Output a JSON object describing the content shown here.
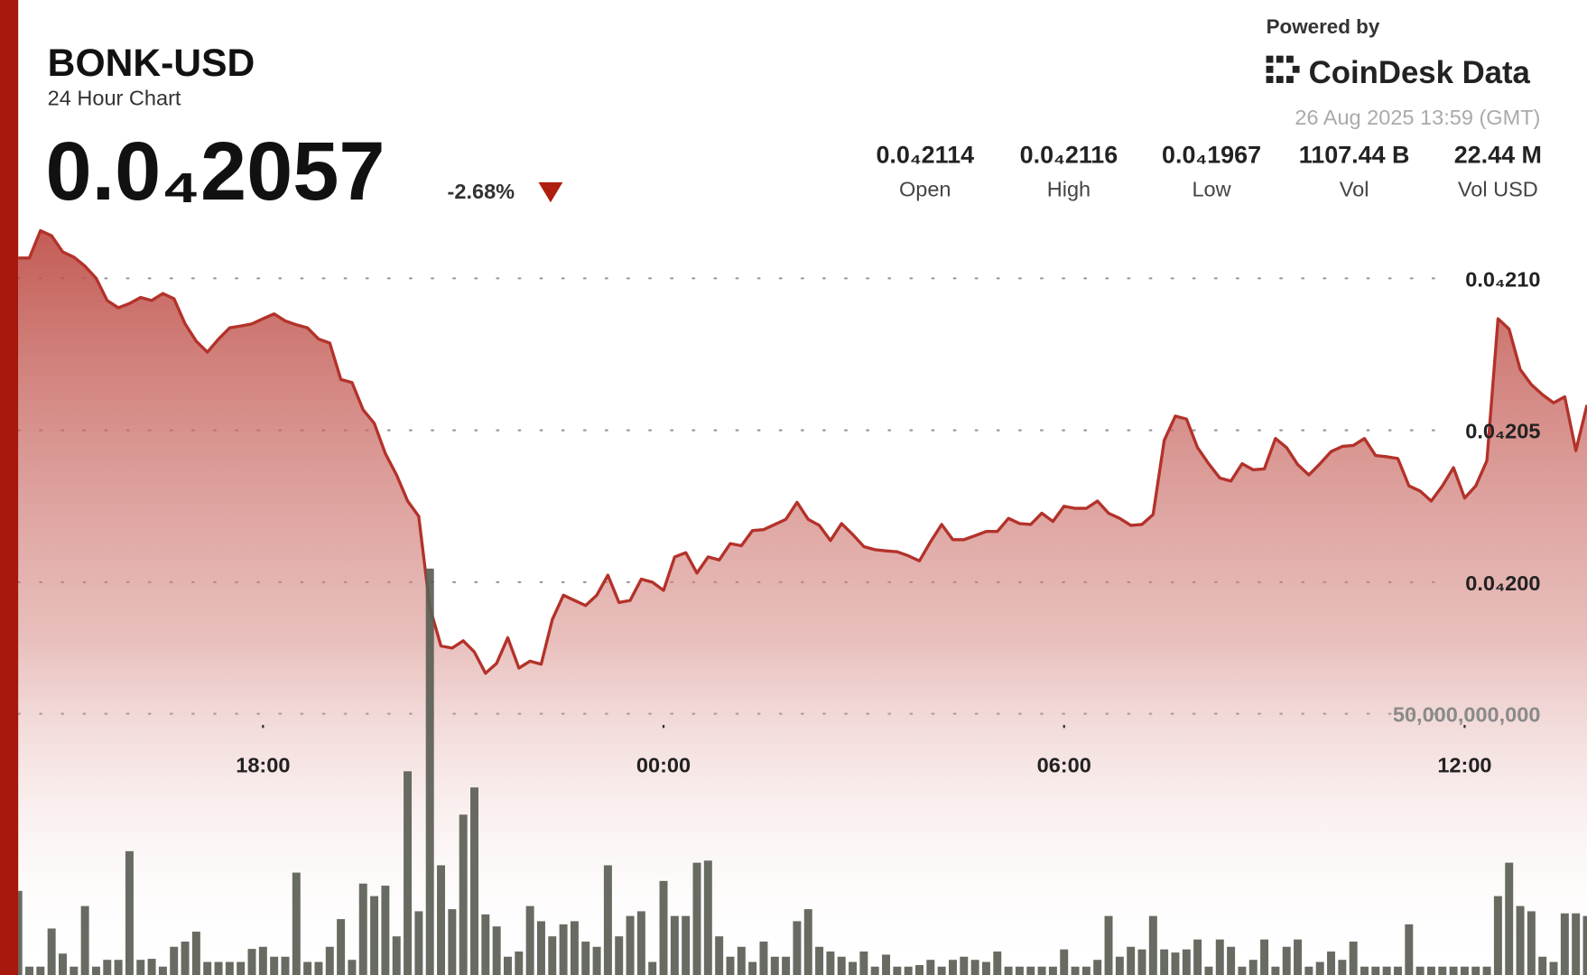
{
  "chart_data": {
    "type": "line",
    "title": "BONK-USD",
    "subtitle": "24 Hour Chart",
    "price": "0.0₄2057",
    "change": "-2.68%",
    "powered_by": "Powered by",
    "brand": "CoinDesk Data",
    "timestamp": "26 Aug 2025 13:59 (GMT)",
    "stats": [
      {
        "value": "0.0₄2114",
        "label": "Open"
      },
      {
        "value": "0.0₄2116",
        "label": "High"
      },
      {
        "value": "0.0₄1967",
        "label": "Low"
      },
      {
        "value": "1107.44 B",
        "label": "Vol"
      },
      {
        "value": "22.44 M",
        "label": "Vol USD"
      }
    ],
    "categories": [
      null,
      null,
      null,
      null,
      null,
      null,
      null,
      null,
      null,
      null,
      null,
      null,
      null,
      null,
      null,
      null,
      null,
      null,
      null,
      null,
      null,
      null,
      "18:00",
      null,
      null,
      null,
      null,
      null,
      null,
      null,
      null,
      null,
      null,
      null,
      null,
      null,
      null,
      null,
      null,
      null,
      null,
      null,
      null,
      null,
      null,
      null,
      null,
      null,
      null,
      null,
      null,
      null,
      null,
      null,
      null,
      null,
      null,
      null,
      "00:00",
      null,
      null,
      null,
      null,
      null,
      null,
      null,
      null,
      null,
      null,
      null,
      null,
      null,
      null,
      null,
      null,
      null,
      null,
      null,
      null,
      null,
      null,
      null,
      null,
      null,
      null,
      null,
      null,
      null,
      null,
      null,
      null,
      null,
      null,
      null,
      "06:00",
      null,
      null,
      null,
      null,
      null,
      null,
      null,
      null,
      null,
      null,
      null,
      null,
      null,
      null,
      null,
      null,
      null,
      null,
      null,
      null,
      null,
      null,
      null,
      null,
      null,
      null,
      null,
      null,
      null,
      null,
      null,
      null,
      null,
      null,
      null,
      "12:00",
      null,
      null,
      null,
      null,
      null,
      null,
      null,
      null,
      null,
      null,
      null
    ],
    "series": [
      {
        "color": "#b3322a",
        "values": [
          2.1067e-05,
          2.1067e-05,
          2.1157e-05,
          2.114e-05,
          2.1087e-05,
          2.107e-05,
          2.104e-05,
          2.1e-05,
          2.0927e-05,
          2.0903e-05,
          2.0917e-05,
          2.0937e-05,
          2.0927e-05,
          2.095e-05,
          2.0933e-05,
          2.085e-05,
          2.0793e-05,
          2.0757e-05,
          2.08e-05,
          2.0837e-05,
          2.0843e-05,
          2.085e-05,
          2.0867e-05,
          2.0883e-05,
          2.086e-05,
          2.0847e-05,
          2.0837e-05,
          2.08e-05,
          2.0787e-05,
          2.0667e-05,
          2.0657e-05,
          2.0567e-05,
          2.0523e-05,
          2.0423e-05,
          2.0353e-05,
          2.0267e-05,
          2.0217e-05,
          1.9917e-05,
          1.979e-05,
          1.9783e-05,
          1.9807e-05,
          1.977e-05,
          1.97e-05,
          1.9733e-05,
          1.9817e-05,
          1.9717e-05,
          1.974e-05,
          1.973e-05,
          1.9877e-05,
          1.9957e-05,
          1.994e-05,
          1.9923e-05,
          1.9957e-05,
          2.0023e-05,
          1.9933e-05,
          1.994e-05,
          2.001e-05,
          2e-05,
          1.9973e-05,
          2.0083e-05,
          2.0097e-05,
          2.003e-05,
          2.0083e-05,
          2.0073e-05,
          2.0127e-05,
          2.012e-05,
          2.017e-05,
          2.0173e-05,
          2.019e-05,
          2.0207e-05,
          2.0263e-05,
          2.0207e-05,
          2.0187e-05,
          2.0137e-05,
          2.0193e-05,
          2.0157e-05,
          2.0117e-05,
          2.0107e-05,
          2.0103e-05,
          2.01e-05,
          2.0087e-05,
          2.007e-05,
          2.0133e-05,
          2.019e-05,
          2.014e-05,
          2.014e-05,
          2.0153e-05,
          2.0167e-05,
          2.0167e-05,
          2.021e-05,
          2.0193e-05,
          2.019e-05,
          2.0227e-05,
          2.02e-05,
          2.025e-05,
          2.0243e-05,
          2.0243e-05,
          2.0267e-05,
          2.0227e-05,
          2.021e-05,
          2.0187e-05,
          2.019e-05,
          2.0223e-05,
          2.0467e-05,
          2.0547e-05,
          2.0537e-05,
          2.0443e-05,
          2.039e-05,
          2.0343e-05,
          2.0333e-05,
          2.039e-05,
          2.037e-05,
          2.0373e-05,
          2.0473e-05,
          2.0443e-05,
          2.0387e-05,
          2.0353e-05,
          2.039e-05,
          2.043e-05,
          2.0447e-05,
          2.045e-05,
          2.0473e-05,
          2.0417e-05,
          2.0413e-05,
          2.0407e-05,
          2.0317e-05,
          2.03e-05,
          2.0267e-05,
          2.0317e-05,
          2.0377e-05,
          2.0277e-05,
          2.0317e-05,
          2.04e-05,
          2.0867e-05,
          2.0833e-05,
          2.07e-05,
          2.065e-05,
          2.0617e-05,
          2.059e-05,
          2.061e-05,
          2.0433e-05,
          2.0583e-05
        ]
      },
      {
        "type": "bar",
        "axis": "y2",
        "color": "#5b5e55",
        "values": [
          16100000000.0,
          1600000000.0,
          1600000000.0,
          8900000000.0,
          4100000000.0,
          1600000000.0,
          13200000000.0,
          1600000000.0,
          2900000000.0,
          2900000000.0,
          23700000000.0,
          2900000000.0,
          3100000000.0,
          1600000000.0,
          5400000000.0,
          6400000000.0,
          8300000000.0,
          2500000000.0,
          2500000000.0,
          2500000000.0,
          2500000000.0,
          5000000000.0,
          5400000000.0,
          3500000000.0,
          3500000000.0,
          19600000000.0,
          2500000000.0,
          2500000000.0,
          5400000000.0,
          10700000000.0,
          2900000000.0,
          17500000000.0,
          15100000000.0,
          17100000000.0,
          7400000000.0,
          39000000000.0,
          12200000000.0,
          77800000000.0,
          21000000000.0,
          12600000000.0,
          30700000000.0,
          35900000000.0,
          11600000000.0,
          9300000000.0,
          3500000000.0,
          4500000000.0,
          13200000000.0,
          10300000000.0,
          7400000000.0,
          9700000000.0,
          10300000000.0,
          6400000000.0,
          5400000000.0,
          21000000000.0,
          7400000000.0,
          11300000000.0,
          12200000000.0,
          2500000000.0,
          18000000000.0,
          11300000000.0,
          11300000000.0,
          21500000000.0,
          21900000000.0,
          7400000000.0,
          3500000000.0,
          5400000000.0,
          2500000000.0,
          6400000000.0,
          3500000000.0,
          3500000000.0,
          10300000000.0,
          12600000000.0,
          5400000000.0,
          4500000000.0,
          3500000000.0,
          2500000000.0,
          4500000000.0,
          1600000000.0,
          3900000000.0,
          1600000000.0,
          1600000000.0,
          1900000000.0,
          2900000000.0,
          1600000000.0,
          2900000000.0,
          3500000000.0,
          2900000000.0,
          2500000000.0,
          4500000000.0,
          1600000000.0,
          1600000000.0,
          1600000000.0,
          1600000000.0,
          1600000000.0,
          4900000000.0,
          1600000000.0,
          1600000000.0,
          2900000000.0,
          11300000000.0,
          3500000000.0,
          5400000000.0,
          4900000000.0,
          11300000000.0,
          4900000000.0,
          4300000000.0,
          4900000000.0,
          6800000000.0,
          1600000000.0,
          6800000000.0,
          5400000000.0,
          1600000000.0,
          2900000000.0,
          6800000000.0,
          1600000000.0,
          5400000000.0,
          6800000000.0,
          1600000000.0,
          2500000000.0,
          4500000000.0,
          2900000000.0,
          6400000000.0,
          1600000000.0,
          1600000000.0,
          1600000000.0,
          1600000000.0,
          9700000000.0,
          1600000000.0,
          1600000000.0,
          1600000000.0,
          1600000000.0,
          1600000000.0,
          1600000000.0,
          1600000000.0,
          15100000000.0,
          21500000000.0,
          13200000000.0,
          12200000000.0,
          3500000000.0,
          2500000000.0,
          11800000000.0,
          11800000000.0,
          11300000000.0
        ]
      }
    ],
    "ylim": [
      1.8707e-05,
      2.1183e-05
    ],
    "yticks": [
      {
        "value": 2e-05,
        "label": "0.0₄200"
      },
      {
        "value": 2.05e-05,
        "label": "0.0₄205"
      },
      {
        "value": 2.1e-05,
        "label": "0.0₄210"
      }
    ],
    "y2lim": [
      0,
      144000000000.0
    ],
    "y2ticks": [
      {
        "value": 50000000000.0,
        "label": "50,000,000,000"
      }
    ],
    "grid": true
  }
}
